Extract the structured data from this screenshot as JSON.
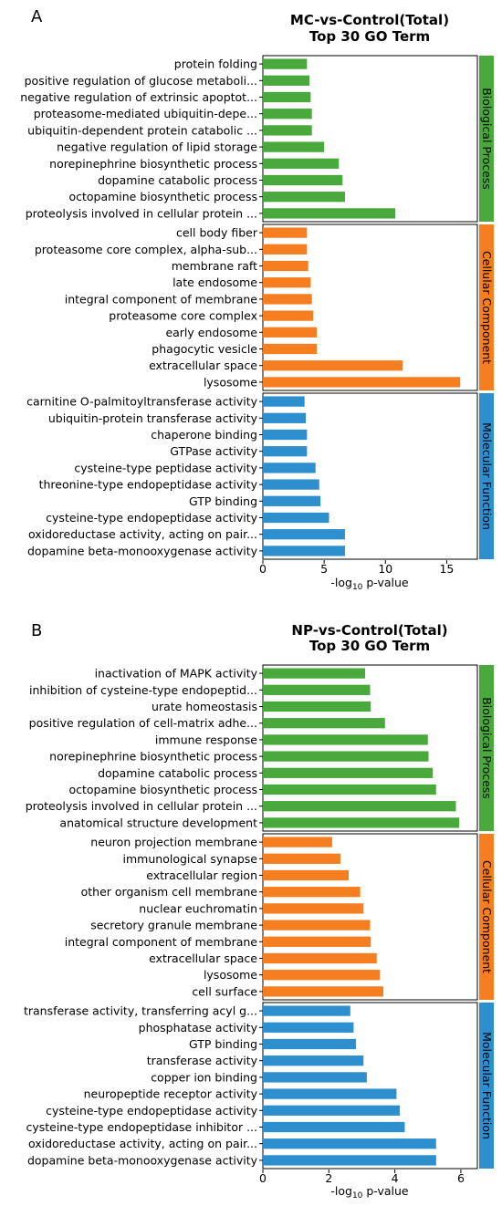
{
  "chart_data": [
    {
      "type": "bar",
      "orientation": "horizontal",
      "panel_label": "A",
      "title_line1": "MC-vs-Control(Total)",
      "title_line2": "Top 30 GO Term",
      "xlabel": "-log10 p-value",
      "xlim": [
        0,
        17.5
      ],
      "xticks": [
        0,
        5,
        10,
        15
      ],
      "groups": [
        {
          "name": "Biological Process",
          "color": "#4aa93c",
          "categories": [
            "protein folding",
            "positive regulation of glucose metaboli...",
            "negative regulation of extrinsic apoptot...",
            "proteasome-mediated ubiquitin-depe...",
            "ubiquitin-dependent protein catabolic ...",
            "negative regulation of lipid storage",
            "norepinephrine biosynthetic process",
            "dopamine catabolic process",
            "octopamine biosynthetic process",
            "proteolysis involved in cellular protein ..."
          ],
          "values": [
            3.6,
            3.8,
            3.9,
            4.0,
            4.0,
            5.0,
            6.2,
            6.5,
            6.7,
            10.8
          ]
        },
        {
          "name": "Cellular Component",
          "color": "#f57e20",
          "categories": [
            "cell body fiber",
            "proteasome core complex, alpha-sub...",
            "membrane raft",
            "late endosome",
            "integral component of membrane",
            "proteasome core complex",
            "early endosome",
            "phagocytic vesicle",
            "extracellular space",
            "lysosome"
          ],
          "values": [
            3.6,
            3.6,
            3.7,
            3.9,
            4.0,
            4.1,
            4.4,
            4.4,
            11.4,
            16.1
          ]
        },
        {
          "name": "Molecular Function",
          "color": "#2e8fcf",
          "categories": [
            "carnitine O-palmitoyltransferase activity",
            "ubiquitin-protein transferase activity",
            "chaperone binding",
            "GTPase activity",
            "cysteine-type peptidase activity",
            "threonine-type endopeptidase activity",
            "GTP binding",
            "cysteine-type endopeptidase activity",
            "oxidoreductase activity, acting on pair...",
            "dopamine beta-monooxygenase activity"
          ],
          "values": [
            3.4,
            3.5,
            3.6,
            3.6,
            4.3,
            4.6,
            4.7,
            5.4,
            6.7,
            6.7
          ]
        }
      ]
    },
    {
      "type": "bar",
      "orientation": "horizontal",
      "panel_label": "B",
      "title_line1": "NP-vs-Control(Total)",
      "title_line2": "Top 30 GO Term",
      "xlabel": "-log10 p-value",
      "xlim": [
        0,
        6.5
      ],
      "xticks": [
        0,
        2,
        4,
        6
      ],
      "groups": [
        {
          "name": "Biological Process",
          "color": "#4aa93c",
          "categories": [
            "inactivation of MAPK activity",
            "inhibition of cysteine-type endopeptid...",
            "urate homeostasis",
            "positive regulation of cell-matrix adhe...",
            "immune response",
            "norepinephrine biosynthetic process",
            "dopamine catabolic process",
            "octopamine biosynthetic process",
            "proteolysis involved in cellular protein ...",
            "anatomical structure development"
          ],
          "values": [
            3.1,
            3.25,
            3.27,
            3.7,
            5.0,
            5.02,
            5.15,
            5.25,
            5.85,
            5.95
          ]
        },
        {
          "name": "Cellular Component",
          "color": "#f57e20",
          "categories": [
            "neuron projection membrane",
            "immunological synapse",
            "extracellular region",
            "other organism cell membrane",
            "nuclear euchromatin",
            "secretory granule membrane",
            "integral component of membrane",
            "extracellular space",
            "lysosome",
            "cell surface"
          ],
          "values": [
            2.1,
            2.35,
            2.6,
            2.95,
            3.05,
            3.25,
            3.27,
            3.45,
            3.55,
            3.65
          ]
        },
        {
          "name": "Molecular Function",
          "color": "#2e8fcf",
          "categories": [
            "transferase activity, transferring acyl g...",
            "phosphatase activity",
            "GTP binding",
            "transferase activity",
            "copper ion binding",
            "neuropeptide receptor activity",
            "cysteine-type endopeptidase activity",
            "cysteine-type endopeptidase inhibitor ...",
            "oxidoreductase activity, acting on pair...",
            "dopamine beta-monooxygenase activity"
          ],
          "values": [
            2.65,
            2.75,
            2.82,
            3.05,
            3.15,
            4.05,
            4.15,
            4.3,
            5.25,
            5.25
          ]
        }
      ]
    }
  ]
}
